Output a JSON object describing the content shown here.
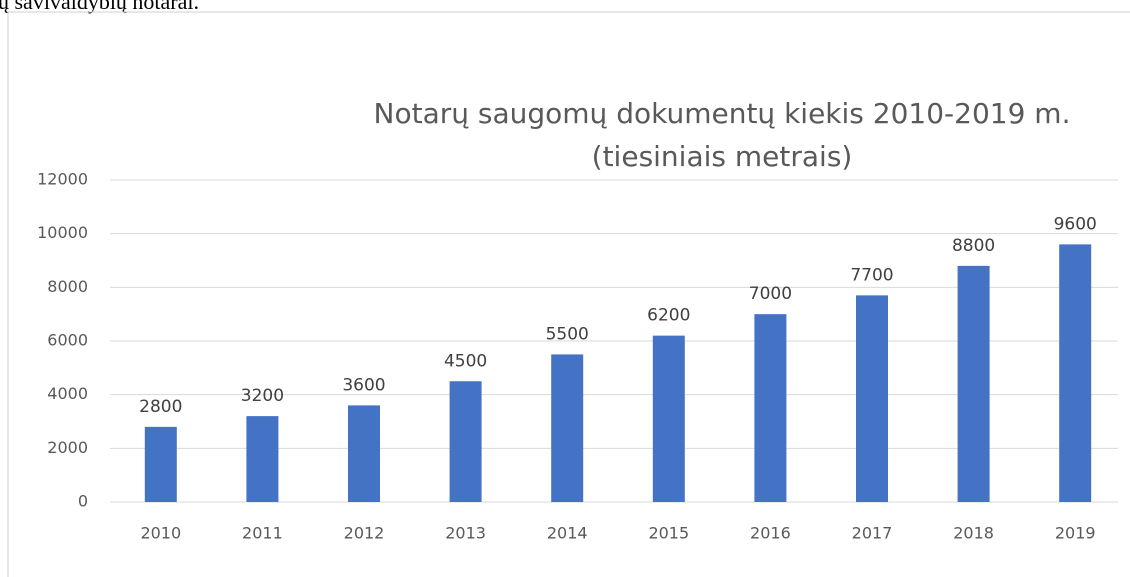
{
  "document": {
    "text": "ų savivaldybių notarai."
  },
  "chart_data": {
    "type": "bar",
    "title": "Notarų saugomų dokumentų kiekis 2010-2019 m.",
    "subtitle": "(tiesiniais metrais)",
    "categories": [
      "2010",
      "2011",
      "2012",
      "2013",
      "2014",
      "2015",
      "2016",
      "2017",
      "2018",
      "2019"
    ],
    "values": [
      2800,
      3200,
      3600,
      4500,
      5500,
      6200,
      7000,
      7700,
      8800,
      9600
    ],
    "color": "#4472c4",
    "ylim": [
      0,
      12000
    ],
    "yticks": [
      0,
      2000,
      4000,
      6000,
      8000,
      10000,
      12000
    ],
    "grid": true
  }
}
